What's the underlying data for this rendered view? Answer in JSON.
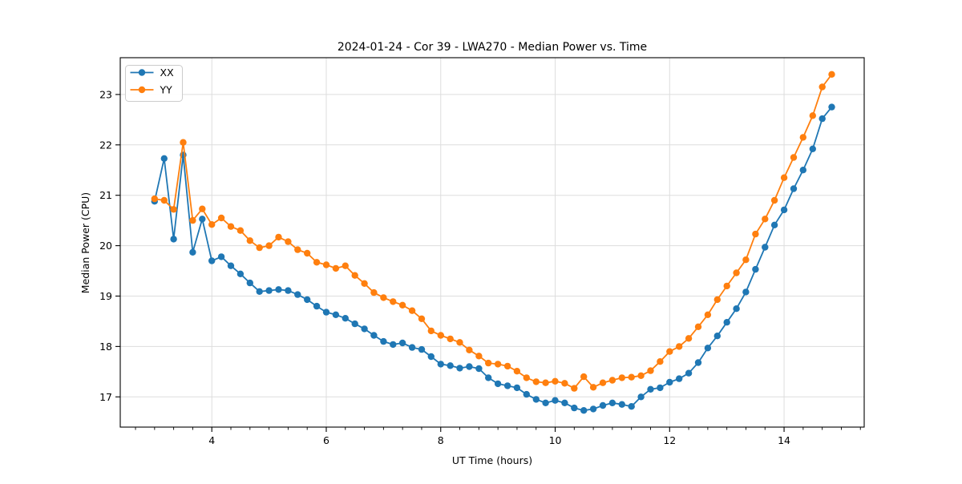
{
  "chart_data": {
    "type": "line",
    "title": "2024-01-24 - Cor 39 - LWA270 - Median Power vs. Time",
    "xlabel": "UT Time (hours)",
    "ylabel": "Median Power (CPU)",
    "xlim": [
      2.4,
      15.4
    ],
    "ylim": [
      16.4,
      23.73
    ],
    "xticks": [
      4,
      6,
      8,
      10,
      12,
      14
    ],
    "yticks": [
      17,
      18,
      19,
      20,
      21,
      22,
      23
    ],
    "x_minor_step": 0.3333,
    "grid": true,
    "legend_position": "upper-left",
    "marker": "o",
    "x": [
      3,
      3.167,
      3.333,
      3.5,
      3.667,
      3.833,
      4,
      4.167,
      4.333,
      4.5,
      4.667,
      4.833,
      5,
      5.167,
      5.333,
      5.5,
      5.667,
      5.833,
      6,
      6.167,
      6.333,
      6.5,
      6.667,
      6.833,
      7,
      7.167,
      7.333,
      7.5,
      7.667,
      7.833,
      8,
      8.167,
      8.333,
      8.5,
      8.667,
      8.833,
      9,
      9.167,
      9.333,
      9.5,
      9.667,
      9.833,
      10,
      10.167,
      10.333,
      10.5,
      10.667,
      10.833,
      11,
      11.167,
      11.333,
      11.5,
      11.667,
      11.833,
      12,
      12.167,
      12.333,
      12.5,
      12.667,
      12.833,
      13,
      13.167,
      13.333,
      13.5,
      13.667,
      13.833,
      14,
      14.167,
      14.333,
      14.5,
      14.667,
      14.833
    ],
    "series": [
      {
        "name": "XX",
        "color": "#1f77b4",
        "values": [
          20.88,
          21.73,
          20.13,
          21.8,
          19.87,
          20.53,
          19.7,
          19.78,
          19.6,
          19.44,
          19.26,
          19.09,
          19.11,
          19.13,
          19.11,
          19.03,
          18.93,
          18.8,
          18.68,
          18.63,
          18.56,
          18.45,
          18.35,
          18.22,
          18.1,
          18.04,
          18.07,
          17.98,
          17.94,
          17.8,
          17.65,
          17.62,
          17.57,
          17.6,
          17.56,
          17.38,
          17.26,
          17.22,
          17.18,
          17.05,
          16.95,
          16.88,
          16.93,
          16.88,
          16.78,
          16.73,
          16.76,
          16.83,
          16.88,
          16.85,
          16.81,
          17.0,
          17.15,
          17.18,
          17.29,
          17.36,
          17.47,
          17.68,
          17.97,
          18.21,
          18.48,
          18.75,
          19.08,
          19.53,
          19.97,
          20.41,
          20.71,
          21.13,
          21.5,
          21.92,
          22.52,
          22.75
        ]
      },
      {
        "name": "YY",
        "color": "#ff7f0e",
        "values": [
          20.93,
          20.9,
          20.72,
          22.05,
          20.5,
          20.73,
          20.42,
          20.55,
          20.38,
          20.3,
          20.1,
          19.96,
          20.0,
          20.17,
          20.08,
          19.92,
          19.85,
          19.67,
          19.62,
          19.55,
          19.6,
          19.41,
          19.25,
          19.07,
          18.97,
          18.89,
          18.82,
          18.71,
          18.55,
          18.31,
          18.22,
          18.15,
          18.08,
          17.93,
          17.81,
          17.67,
          17.65,
          17.61,
          17.51,
          17.38,
          17.3,
          17.28,
          17.31,
          17.27,
          17.17,
          17.4,
          17.19,
          17.28,
          17.33,
          17.38,
          17.39,
          17.42,
          17.52,
          17.7,
          17.9,
          18.0,
          18.16,
          18.39,
          18.63,
          18.93,
          19.2,
          19.46,
          19.72,
          20.23,
          20.53,
          20.9,
          21.35,
          21.75,
          22.15,
          22.58,
          23.15,
          23.4
        ]
      }
    ],
    "styles": {
      "grid_color": "#dddddd",
      "spine_color": "#000000",
      "background": "#ffffff",
      "legend_border": "#cccccc"
    }
  }
}
